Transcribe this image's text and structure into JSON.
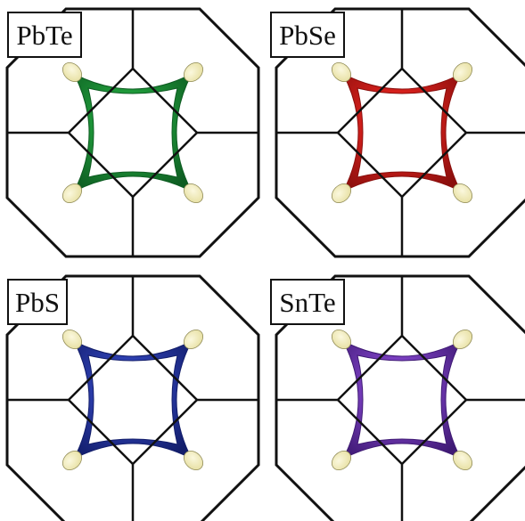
{
  "panels": [
    {
      "label": "PbTe",
      "surface_color": "#1f9a3a",
      "surface_edge": "#0e5c22",
      "cap_color": "#e9e2a8"
    },
    {
      "label": "PbSe",
      "surface_color": "#d7201c",
      "surface_edge": "#8a0f0d",
      "cap_color": "#e9e2a8"
    },
    {
      "label": "PbS",
      "surface_color": "#2d3fb0",
      "surface_edge": "#121d6a",
      "cap_color": "#e9e2a8"
    },
    {
      "label": "SnTe",
      "surface_color": "#7a3fc0",
      "surface_edge": "#3f1a74",
      "cap_color": "#e9e2a8"
    }
  ]
}
